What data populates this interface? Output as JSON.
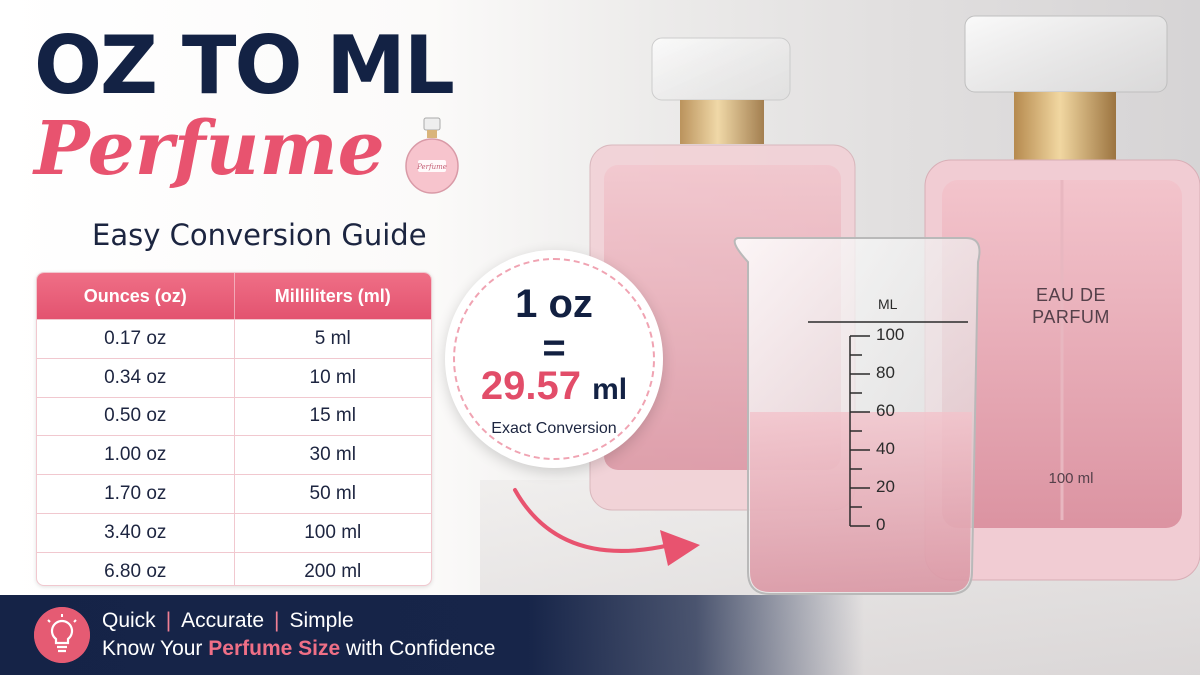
{
  "headline": {
    "main": "OZ TO ML",
    "script": "Perfume",
    "subtitle": "Easy Conversion Guide"
  },
  "mini_bottle_label": "Perfume",
  "table": {
    "headers": [
      "Ounces (oz)",
      "Milliliters (ml)"
    ],
    "rows": [
      [
        "0.17 oz",
        "5 ml"
      ],
      [
        "0.34 oz",
        "10 ml"
      ],
      [
        "0.50 oz",
        "15 ml"
      ],
      [
        "1.00 oz",
        "30 ml"
      ],
      [
        "1.70 oz",
        "50 ml"
      ],
      [
        "3.40 oz",
        "100 ml"
      ],
      [
        "6.80 oz",
        "200 ml"
      ]
    ]
  },
  "callout": {
    "oz": "1 oz",
    "equals": "=",
    "ml_value": "29.57",
    "ml_unit": "ml",
    "caption": "Exact Conversion"
  },
  "beaker": {
    "unit": "ML",
    "ticks": [
      "100",
      "80",
      "60",
      "40",
      "20",
      "0"
    ],
    "fill_level_ml": 60
  },
  "bottle": {
    "label_line1": "EAU DE",
    "label_line2": "PARFUM",
    "capacity": "100 ml"
  },
  "banner": {
    "words": [
      "Quick",
      "Accurate",
      "Simple"
    ],
    "separator": "|",
    "line2_pre": "Know Your",
    "line2_accent": "Perfume Size",
    "line2_post": "with Confidence"
  },
  "colors": {
    "navy": "#132244",
    "pink_accent": "#e8536f",
    "table_header": "#e35370",
    "banner": "#152347"
  },
  "icons": [
    "perfume-bottle-icon",
    "lightbulb-icon",
    "arrow-icon"
  ]
}
